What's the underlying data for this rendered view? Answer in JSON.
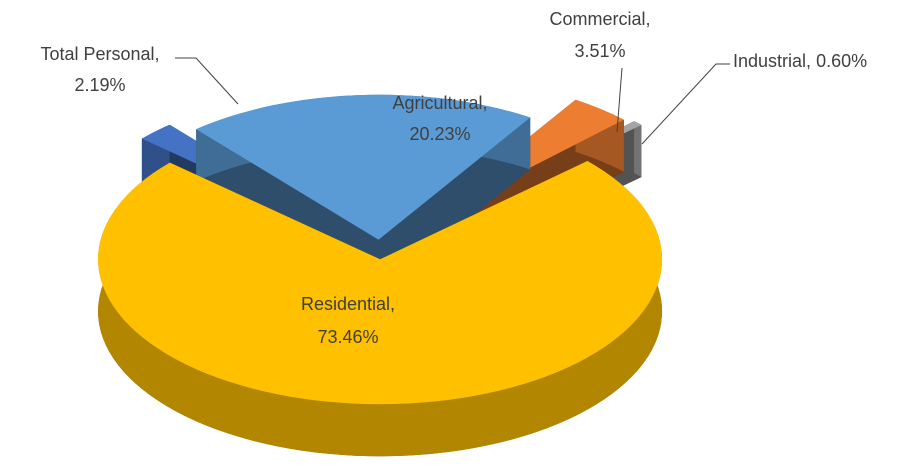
{
  "chart_data": {
    "type": "pie3d",
    "categories": [
      "Total Personal",
      "Agricultural",
      "Commercial",
      "Industrial",
      "Residential"
    ],
    "values": [
      2.19,
      20.23,
      3.51,
      0.6,
      73.46
    ],
    "value_labels": [
      "2.19%",
      "20.23%",
      "3.51%",
      "0.60%",
      "73.46%"
    ],
    "label_separator": ",",
    "colors": [
      "#4472c4",
      "#5b9bd5",
      "#ed7d31",
      "#a5a5a5",
      "#ffc000"
    ]
  }
}
